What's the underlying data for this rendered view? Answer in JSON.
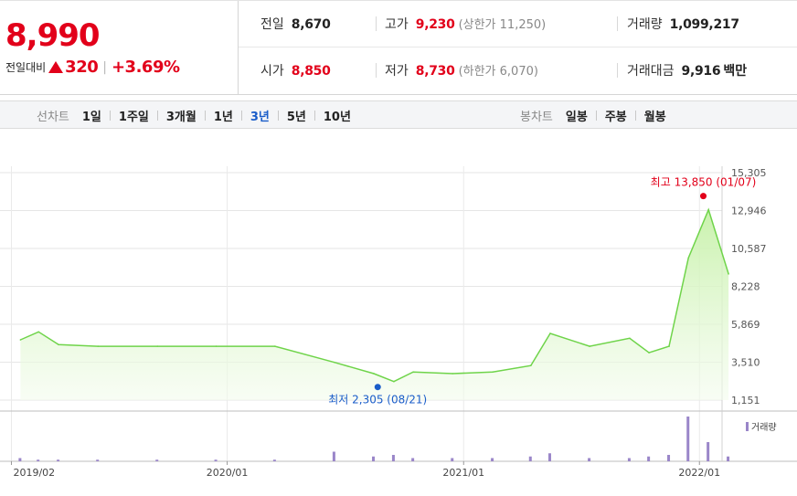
{
  "quote": {
    "price": "8,990",
    "change_label": "전일대비",
    "change_amount": "320",
    "change_rate": "+3.69%",
    "prev_close_label": "전일",
    "prev_close": "8,670",
    "high_label": "고가",
    "high": "9,230",
    "upper_limit": "(상한가 11,250)",
    "volume_label": "거래량",
    "volume": "1,099,217",
    "open_label": "시가",
    "open": "8,850",
    "low_label": "저가",
    "low": "8,730",
    "lower_limit": "(하한가 6,070)",
    "amount_label": "거래대금",
    "amount": "9,916",
    "amount_unit": "백만"
  },
  "colors": {
    "up": "#e2001a",
    "down": "#1a5dc9",
    "line": "#6fd44a",
    "volume": "#9a86c9"
  },
  "toolbar": {
    "line_chart_label": "선차트",
    "line_periods": [
      "1일",
      "1주일",
      "3개월",
      "1년",
      "3년",
      "5년",
      "10년"
    ],
    "active_period": "3년",
    "candle_chart_label": "봉차트",
    "candle_periods": [
      "일봉",
      "주봉",
      "월봉"
    ]
  },
  "chart_data": {
    "type": "area",
    "y_ticks": [
      "15,305",
      "12,946",
      "10,587",
      "8,228",
      "5,869",
      "3,510",
      "1,151"
    ],
    "ylim": [
      1151,
      15305
    ],
    "x_ticks": [
      "2019/02",
      "2020/01",
      "2021/01",
      "2022/01"
    ],
    "x": [
      "2019-02",
      "2019-03",
      "2019-04",
      "2019-06",
      "2019-09",
      "2019-12",
      "2020-03",
      "2020-06",
      "2020-08",
      "2020-09",
      "2020-10",
      "2020-12",
      "2021-02",
      "2021-04",
      "2021-05",
      "2021-07",
      "2021-09",
      "2021-10",
      "2021-11",
      "2021-12",
      "2022-01",
      "2022-02"
    ],
    "values": [
      4900,
      5400,
      4600,
      4500,
      4500,
      4500,
      4500,
      3500,
      2800,
      2305,
      2900,
      2800,
      2900,
      3300,
      5300,
      4500,
      5000,
      4100,
      4500,
      10000,
      13000,
      9000
    ],
    "high": {
      "label": "최고 13,850 (01/07)",
      "value": 13850,
      "date": "2022-01-07"
    },
    "low": {
      "label": "최저 2,305 (08/21)",
      "value": 2305,
      "date": "2020-08-21"
    },
    "volume_legend": "거래량",
    "volume": [
      2,
      1,
      1,
      1,
      1,
      1,
      1,
      6,
      3,
      4,
      2,
      2,
      2,
      3,
      5,
      2,
      2,
      3,
      4,
      28,
      12,
      3
    ]
  }
}
